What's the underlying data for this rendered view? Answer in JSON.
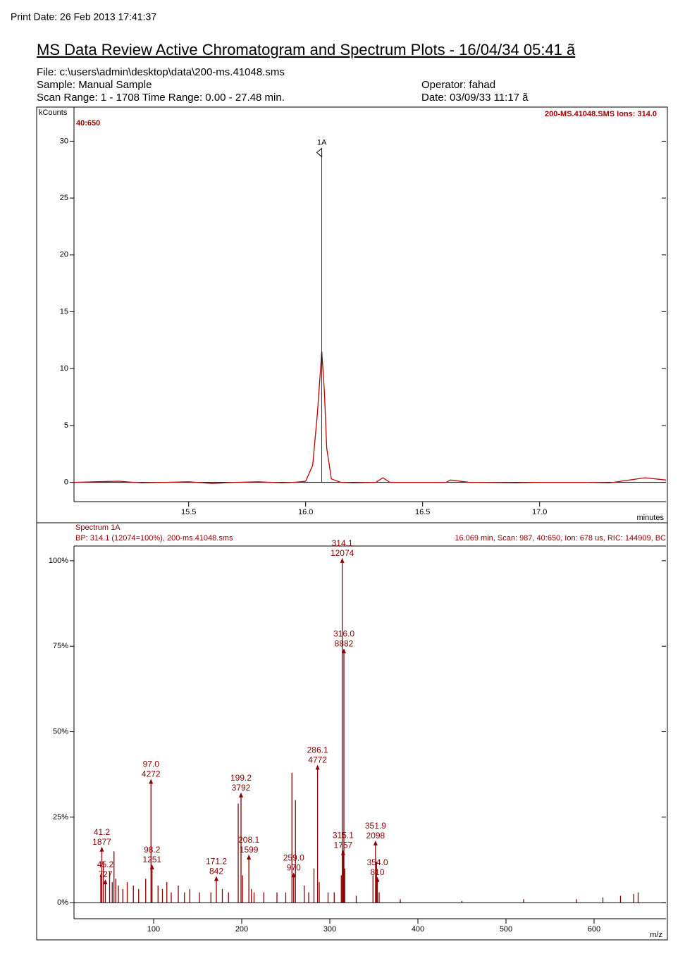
{
  "header": {
    "print_date": "Print Date:  26 Feb 2013 17:41:37",
    "title": "MS Data Review Active Chromatogram and Spectrum Plots - 16/04/34 05:41 ã",
    "file": "File: c:\\users\\admin\\desktop\\data\\200-ms.41048.sms",
    "sample": "Sample: Manual Sample",
    "scan_range": "Scan Range: 1 - 1708 Time Range: 0.00 - 27.48 min.",
    "operator": "Operator: fahad",
    "date": "Date: 03/09/33 11:17 ã"
  },
  "chart_data": [
    {
      "type": "line",
      "y_label": "kCounts",
      "x_label": "minutes",
      "trace_label": "40:650",
      "ions_label": "200-MS.41048.SMS Ions: 314.0",
      "peak": {
        "label": "1A",
        "x": 16.069,
        "y": 29
      },
      "color": "#c00000",
      "x": [
        15.01,
        15.1,
        15.2,
        15.3,
        15.4,
        15.5,
        15.6,
        15.7,
        15.8,
        15.9,
        15.95,
        16.0,
        16.03,
        16.05,
        16.069,
        16.08,
        16.09,
        16.11,
        16.15,
        16.2,
        16.3,
        16.33,
        16.36,
        16.5,
        16.6,
        16.62,
        16.7,
        16.9,
        17.0,
        17.2,
        17.3,
        17.45,
        17.54
      ],
      "values": [
        0,
        0.05,
        0.1,
        -0.05,
        0,
        0.05,
        -0.1,
        0,
        0.05,
        -0.05,
        0,
        0.1,
        1.5,
        6,
        11.5,
        8,
        3,
        0.3,
        0,
        -0.05,
        0,
        0.4,
        0,
        0,
        0,
        0.2,
        0,
        -0.05,
        0,
        0,
        -0.05,
        0.4,
        0.2
      ],
      "xlim": [
        15.01,
        17.54
      ],
      "ylim": [
        -1.7,
        33
      ],
      "xticks": [
        15.5,
        {
          "value": 16,
          "label": "16.0"
        },
        16.5,
        {
          "value": 17,
          "label": "17.0"
        }
      ],
      "yticks": [
        0,
        5,
        10,
        15,
        20,
        25,
        30
      ]
    },
    {
      "type": "bar",
      "title": "Spectrum 1A",
      "subtitle": "BP: 314.1 (12074=100%), 200-ms.41048.sms",
      "scan_info": "16.069 min, Scan: 987, 40:650, Ion: 678 us, RIC: 144909, BC",
      "x_label": "m/z",
      "series": [
        {
          "color": "#8b0000",
          "x": [
            41.2,
            45.2,
            97.0,
            98.2,
            171.2,
            199.2,
            208.1,
            259.0,
            286.1,
            314.1,
            315.1,
            316.0,
            351.9,
            354.0
          ],
          "x_labels": [
            "41.2",
            "45.2",
            "97.0",
            "98.2",
            "171.2",
            "199.2",
            "208.1",
            "259.0",
            "286.1",
            "314.1",
            "315.1",
            "316.0",
            "351.9",
            "354.0"
          ],
          "values": [
            15.55,
            6.02,
            35.38,
            10.36,
            6.97,
            31.41,
            13.24,
            8.03,
            39.52,
            100,
            14.55,
            73.56,
            17.38,
            6.71
          ],
          "value_labels": [
            "1877",
            "727",
            "4272",
            "1251",
            "842",
            "3792",
            "1599",
            "970",
            "4772",
            "12074",
            "1757",
            "8882",
            "2098",
            "810"
          ]
        },
        {
          "color": "#8b0000",
          "x": [
            40,
            43,
            50,
            53,
            55,
            57,
            60,
            65,
            70,
            77,
            83,
            91,
            105,
            110,
            115,
            120,
            128,
            135,
            141,
            152,
            165,
            178,
            185,
            196,
            201,
            211,
            214,
            225,
            240,
            250,
            257,
            261,
            271,
            276,
            282,
            288,
            298,
            305,
            313,
            317,
            330,
            349,
            353,
            356,
            380,
            450,
            520,
            580,
            610,
            630,
            645,
            650
          ],
          "values": [
            8,
            12,
            9,
            6,
            15,
            7,
            5,
            4,
            6,
            5,
            4,
            7,
            5,
            4,
            6,
            3,
            5,
            3,
            4,
            3,
            3,
            4,
            3,
            29,
            8,
            4,
            3,
            3,
            3,
            3,
            38,
            30,
            5,
            3,
            10,
            6,
            3,
            3,
            8,
            10,
            2,
            8,
            12,
            3,
            1,
            0.5,
            1,
            1,
            1.5,
            2,
            2.5,
            3
          ]
        }
      ],
      "xlim": [
        9.6,
        681.6
      ],
      "ylim": [
        -4.7,
        104.3
      ],
      "xticks": [
        100,
        200,
        300,
        400,
        500,
        600
      ],
      "yticks": [
        {
          "value": 0,
          "label": "0%"
        },
        {
          "value": 25,
          "label": "25%"
        },
        {
          "value": 50,
          "label": "50%"
        },
        {
          "value": 75,
          "label": "75%"
        },
        {
          "value": 100,
          "label": "100%"
        }
      ]
    }
  ]
}
